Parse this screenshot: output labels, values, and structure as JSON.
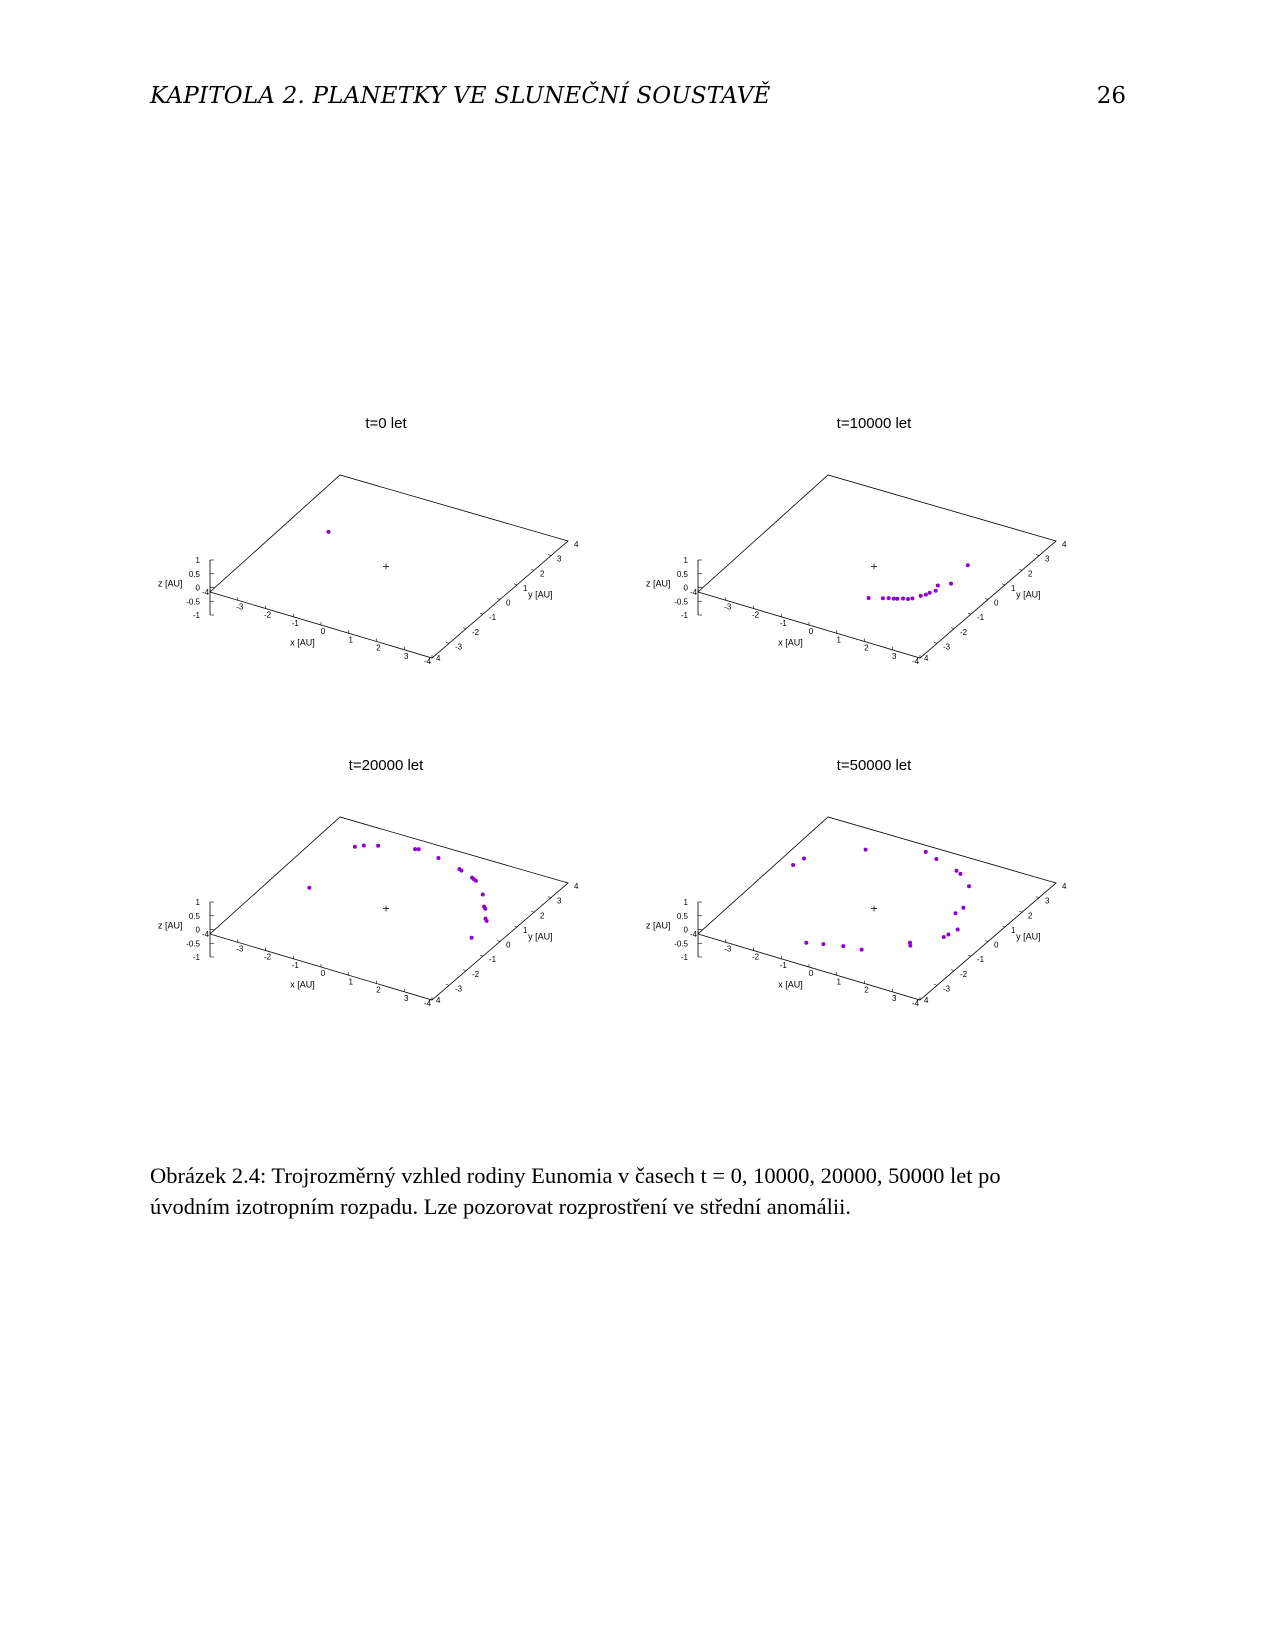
{
  "header": {
    "title": "KAPITOLA 2.  PLANETKY VE SLUNEČNÍ SOUSTAVĚ",
    "page": "26"
  },
  "figure": {
    "caption_line1": "Obrázek 2.4: Trojrozměrný vzhled rodiny Eunomia v časech t = 0, 10000, 20000, 50000 let po",
    "caption_line2": "úvodním izotropním rozpadu. Lze pozorovat rozprostření ve střední anomálii."
  },
  "colors": {
    "points": "#9400d3",
    "axes": "#000000"
  },
  "chart_data": [
    {
      "type": "scatter",
      "title": "t=0 let",
      "xlabel": "x [AU]",
      "ylabel": "y [AU]",
      "zlabel": "z [AU]",
      "xlim": [
        -4,
        4
      ],
      "ylim": [
        -4,
        4
      ],
      "zlim": [
        -1,
        1
      ],
      "x_ticks": [
        "-4",
        "-3",
        "-2",
        "-1",
        "0",
        "1",
        "2",
        "3",
        "4"
      ],
      "y_ticks": [
        "-4",
        "-3",
        "-2",
        "-1",
        "0",
        "1",
        "2",
        "3",
        "4"
      ],
      "z_ticks": [
        "1",
        "0.5",
        "0",
        "-0.5",
        "-1"
      ],
      "points": [
        [
          -2.6,
          0.9,
          0
        ]
      ]
    },
    {
      "type": "scatter",
      "title": "t=10000 let",
      "xlabel": "x [AU]",
      "ylabel": "y [AU]",
      "zlabel": "z [AU]",
      "xlim": [
        -4,
        4
      ],
      "ylim": [
        -4,
        4
      ],
      "zlim": [
        -1,
        1
      ],
      "x_ticks": [
        "-4",
        "-3",
        "-2",
        "-1",
        "0",
        "1",
        "2",
        "3",
        "4"
      ],
      "y_ticks": [
        "-4",
        "-3",
        "-2",
        "-1",
        "0",
        "1",
        "2",
        "3",
        "4"
      ],
      "z_ticks": [
        "1",
        "0.5",
        "0",
        "-0.5",
        "-1"
      ],
      "points": [
        [
          2.6,
          0.3,
          0
        ],
        [
          2.5,
          1.5,
          0
        ],
        [
          2.3,
          0.0,
          0
        ],
        [
          2.4,
          -0.3,
          0
        ],
        [
          2.3,
          -0.5,
          0
        ],
        [
          2.25,
          -0.65,
          0
        ],
        [
          2.15,
          -0.8,
          0
        ],
        [
          2.0,
          -1.05,
          0
        ],
        [
          1.9,
          -1.15,
          0
        ],
        [
          1.75,
          -1.2,
          0
        ],
        [
          1.6,
          -1.3,
          0
        ],
        [
          1.5,
          -1.35,
          0
        ],
        [
          1.35,
          -1.4,
          0
        ],
        [
          1.2,
          -1.5,
          0
        ],
        [
          0.8,
          -1.7,
          0
        ]
      ]
    },
    {
      "type": "scatter",
      "title": "t=20000 let",
      "xlabel": "x [AU]",
      "ylabel": "y [AU]",
      "zlabel": "z [AU]",
      "xlim": [
        -4,
        4
      ],
      "ylim": [
        -4,
        4
      ],
      "zlim": [
        -1,
        1
      ],
      "x_ticks": [
        "-4",
        "-3",
        "-2",
        "-1",
        "0",
        "1",
        "2",
        "3",
        "4"
      ],
      "y_ticks": [
        "-4",
        "-3",
        "-2",
        "-1",
        "0",
        "1",
        "2",
        "3",
        "4"
      ],
      "z_ticks": [
        "1",
        "0.5",
        "0",
        "-0.5",
        "-1"
      ],
      "points": [
        [
          -2.7,
          -0.1,
          0
        ],
        [
          -2.7,
          2.7,
          0
        ],
        [
          -2.5,
          2.9,
          0
        ],
        [
          -2.1,
          3.1,
          0
        ],
        [
          -1.0,
          3.5,
          0
        ],
        [
          -0.9,
          3.55,
          0
        ],
        [
          -0.1,
          3.4,
          0
        ],
        [
          0.8,
          3.15,
          0
        ],
        [
          0.9,
          3.1,
          0
        ],
        [
          1.4,
          2.9,
          0
        ],
        [
          1.5,
          2.85,
          0
        ],
        [
          1.6,
          2.8,
          0
        ],
        [
          2.2,
          2.2,
          0
        ],
        [
          2.6,
          1.6,
          0
        ],
        [
          2.7,
          1.5,
          0
        ],
        [
          3.0,
          1.0,
          0
        ],
        [
          3.1,
          0.9,
          0
        ],
        [
          3.2,
          -0.2,
          0
        ]
      ]
    },
    {
      "type": "scatter",
      "title": "t=50000 let",
      "xlabel": "x [AU]",
      "ylabel": "y [AU]",
      "zlabel": "z [AU]",
      "xlim": [
        -4,
        4
      ],
      "ylim": [
        -4,
        4
      ],
      "zlim": [
        -1,
        1
      ],
      "x_ticks": [
        "-4",
        "-3",
        "-2",
        "-1",
        "0",
        "1",
        "2",
        "3",
        "4"
      ],
      "y_ticks": [
        "-4",
        "-3",
        "-2",
        "-1",
        "0",
        "1",
        "2",
        "3",
        "4"
      ],
      "z_ticks": [
        "1",
        "0.5",
        "0",
        "-0.5",
        "-1"
      ],
      "points": [
        [
          -3.5,
          1.0,
          0
        ],
        [
          -3.4,
          1.5,
          0
        ],
        [
          -2.0,
          2.9,
          0
        ],
        [
          -0.3,
          3.7,
          0
        ],
        [
          0.2,
          3.5,
          0
        ],
        [
          1.1,
          3.2,
          0
        ],
        [
          1.3,
          3.1,
          0
        ],
        [
          1.9,
          2.6,
          0
        ],
        [
          2.4,
          1.4,
          0
        ],
        [
          2.35,
          1.0,
          0
        ],
        [
          2.9,
          0.2,
          0
        ],
        [
          2.8,
          -0.2,
          0
        ],
        [
          2.75,
          -0.4,
          0
        ],
        [
          2.0,
          -1.2,
          0
        ],
        [
          2.1,
          -1.35,
          0
        ],
        [
          -0.8,
          -2.8,
          0
        ],
        [
          -0.3,
          -2.6,
          0
        ],
        [
          0.3,
          -2.4,
          0
        ],
        [
          0.9,
          -2.3,
          0
        ]
      ]
    }
  ]
}
